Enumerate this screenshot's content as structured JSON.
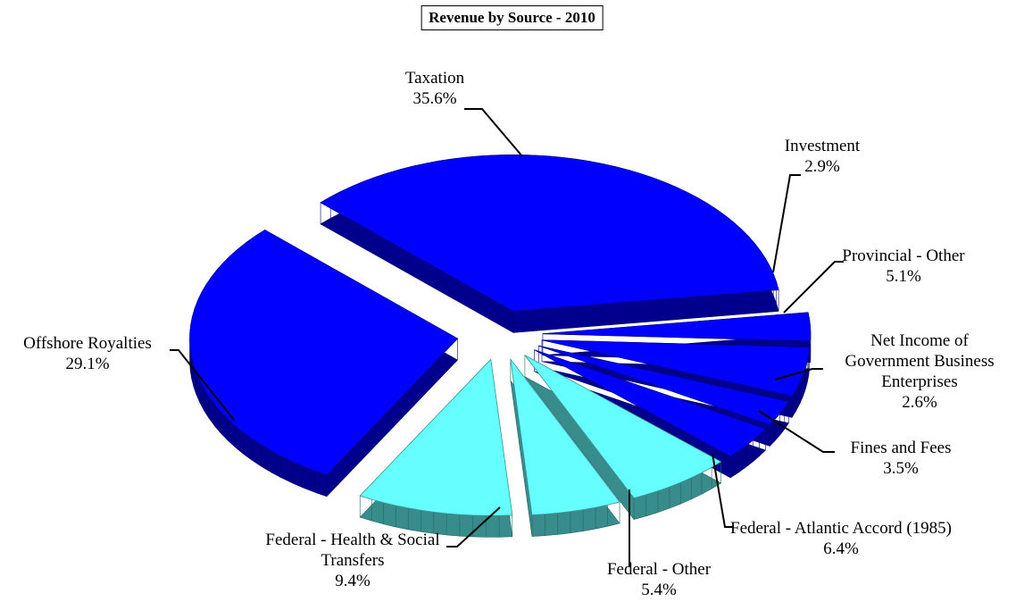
{
  "chart_data": {
    "type": "pie",
    "title": "Revenue by Source - 2010",
    "categories": [
      "Taxation",
      "Investment",
      "Provincial - Other",
      "Net Income of Government Business Enterprises",
      "Fines and Fees",
      "Federal - Atlantic Accord (1985)",
      "Federal - Other",
      "Federal - Health & Social Transfers",
      "Offshore Royalties"
    ],
    "values": [
      35.6,
      2.9,
      5.1,
      2.6,
      3.5,
      6.4,
      5.4,
      9.4,
      29.1
    ],
    "value_labels": [
      "35.6%",
      "2.9%",
      "5.1%",
      "2.6%",
      "3.5%",
      "6.4%",
      "5.4%",
      "9.4%",
      "29.1%"
    ],
    "colors": [
      "#0000ff",
      "#0000ff",
      "#0000ff",
      "#0000ff",
      "#0000ff",
      "#66ffff",
      "#66ffff",
      "#66ffff",
      "#0000ff"
    ]
  }
}
